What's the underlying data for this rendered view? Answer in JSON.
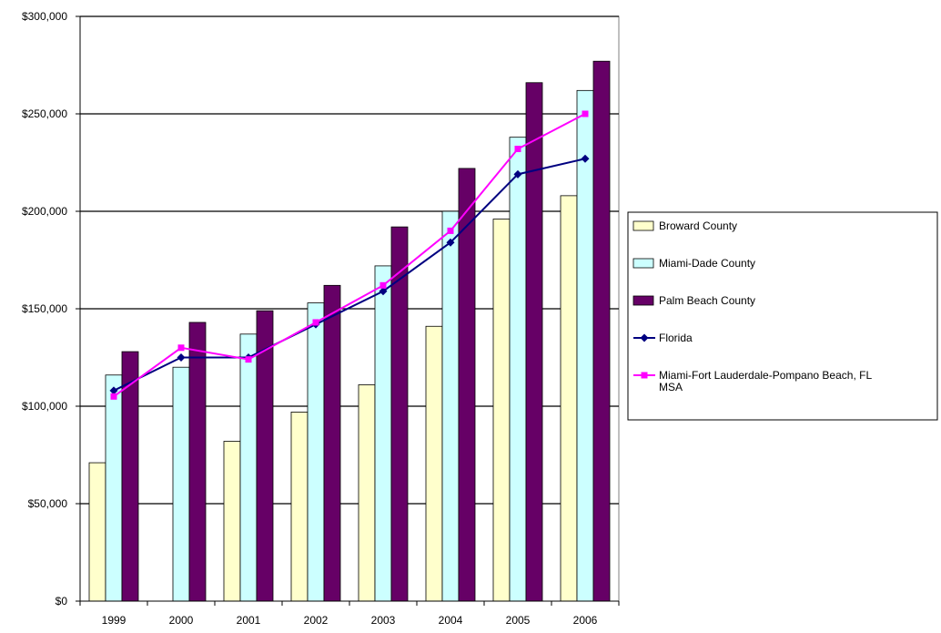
{
  "chart_data": {
    "type": "bar",
    "title": "",
    "xlabel": "",
    "ylabel": "",
    "categories": [
      "1999",
      "2000",
      "2001",
      "2002",
      "2003",
      "2004",
      "2005",
      "2006"
    ],
    "ylim": [
      0,
      300000
    ],
    "yticks": [
      0,
      50000,
      100000,
      150000,
      200000,
      250000,
      300000
    ],
    "ytick_labels": [
      "$0",
      "$50,000",
      "$100,000",
      "$150,000",
      "$200,000",
      "$250,000",
      "$300,000"
    ],
    "grid": true,
    "legend_position": "right",
    "bar_series": [
      {
        "name": "Broward County",
        "color": "#ffffcc",
        "values": [
          71000,
          null,
          82000,
          97000,
          111000,
          141000,
          196000,
          208000
        ]
      },
      {
        "name": "Miami-Dade County",
        "color": "#ccffff",
        "values": [
          116000,
          120000,
          137000,
          153000,
          172000,
          200000,
          238000,
          262000
        ]
      },
      {
        "name": "Palm Beach County",
        "color": "#660066",
        "values": [
          128000,
          143000,
          149000,
          162000,
          192000,
          222000,
          266000,
          277000
        ]
      }
    ],
    "line_series": [
      {
        "name": "Florida",
        "color": "#000080",
        "marker": "diamond",
        "values": [
          108000,
          125000,
          125000,
          142000,
          159000,
          184000,
          219000,
          227000
        ]
      },
      {
        "name": "Miami-Fort Lauderdale-Pompano Beach, FL MSA",
        "color": "#ff00ff",
        "marker": "square",
        "values": [
          105000,
          130000,
          124000,
          143000,
          162000,
          190000,
          232000,
          250000
        ]
      }
    ]
  }
}
